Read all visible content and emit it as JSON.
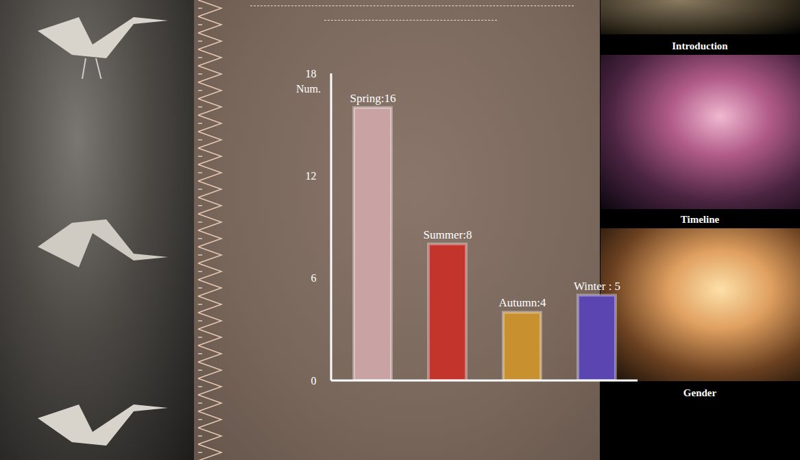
{
  "chart_data": {
    "type": "bar",
    "categories": [
      "Spring",
      "Summer",
      "Autumn",
      "Winter"
    ],
    "values": [
      16,
      8,
      4,
      5
    ],
    "value_labels": [
      "Spring:16",
      "Summer:8",
      "Autumn:4",
      "Winter : 5"
    ],
    "colors": [
      "#c9a2a4",
      "#c2342c",
      "#c8902f",
      "#5b45b0"
    ],
    "y_label": "Num.",
    "ylim": [
      0,
      18
    ],
    "yticks": [
      18,
      12,
      6,
      0
    ],
    "data_labels": true,
    "tick_labels": "y",
    "grid": false
  },
  "nav": [
    "Introduction",
    "Timeline",
    "Gender"
  ]
}
